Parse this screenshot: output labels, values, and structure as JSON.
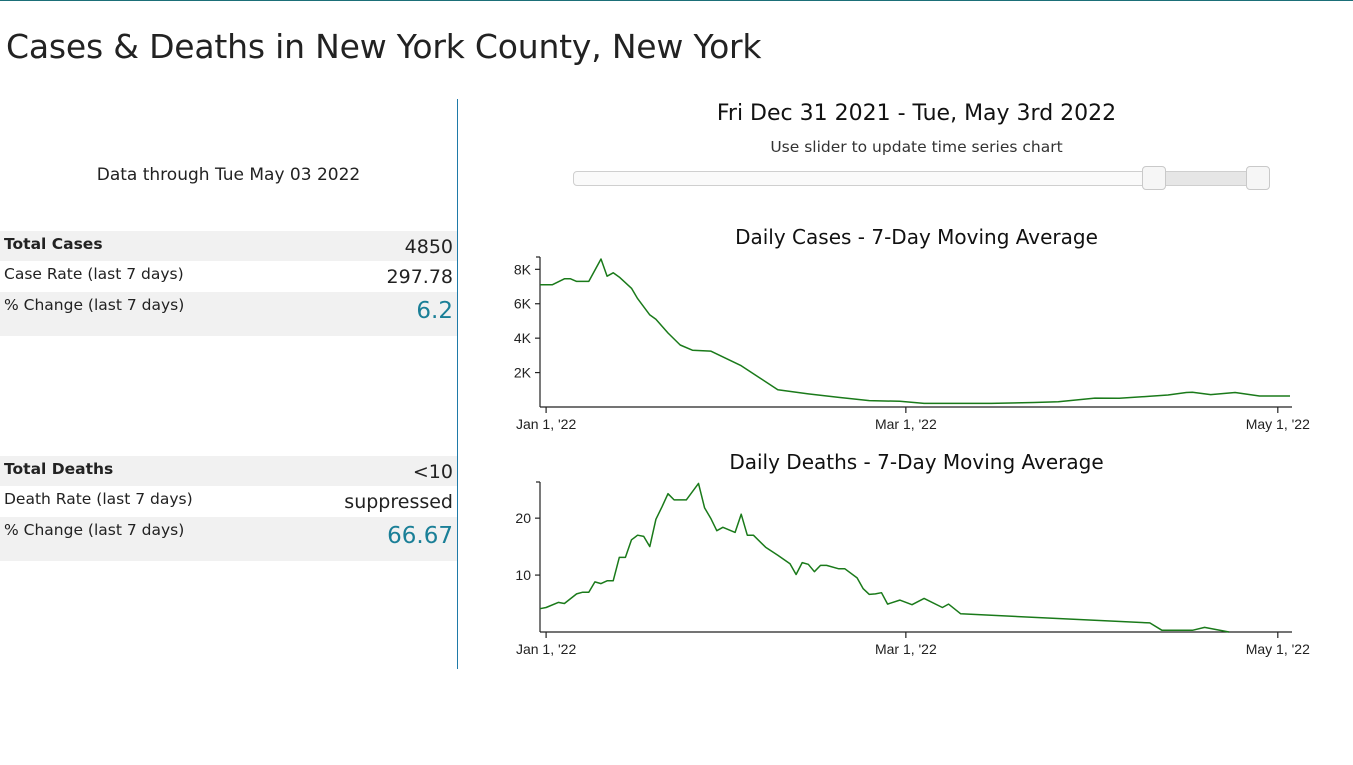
{
  "page": {
    "title": "Cases & Deaths in New York County, New York"
  },
  "summary": {
    "data_through": "Data through Tue May 03 2022"
  },
  "cases_table": [
    {
      "label": "Total Cases",
      "value": "4850"
    },
    {
      "label": "Case Rate (last 7 days)",
      "value": "297.78"
    },
    {
      "label": "% Change (last 7 days)",
      "value": "6.2"
    }
  ],
  "deaths_table": [
    {
      "label": "Total Deaths",
      "value": "<10"
    },
    {
      "label": "Death Rate (last 7 days)",
      "value": "suppressed"
    },
    {
      "label": "% Change (last 7 days)",
      "value": "66.67"
    }
  ],
  "time_range": {
    "title": "Fri Dec 31 2021 - Tue, May 3rd 2022",
    "hint": "Use slider to update time series chart",
    "slider_min": "2020-03-01",
    "slider_max": "2022-05-03",
    "selected_start": "2021-12-31",
    "selected_end": "2022-05-03"
  },
  "colors": {
    "line": "#1a7a1a",
    "accent": "#1a7f97",
    "divider": "#1f7aa8"
  },
  "chart_data": [
    {
      "type": "line",
      "title": "Daily Cases - 7-Day Moving Average",
      "xlabel": "",
      "ylabel": "",
      "x_ticks": [
        {
          "date": "2022-01-01",
          "label": "Jan 1, '22"
        },
        {
          "date": "2022-03-01",
          "label": "Mar 1, '22"
        },
        {
          "date": "2022-05-01",
          "label": "May 1, '22"
        }
      ],
      "xlim": [
        "2021-12-31",
        "2022-05-03"
      ],
      "y_ticks": [
        {
          "value": 2000,
          "label": "2K"
        },
        {
          "value": 4000,
          "label": "4K"
        },
        {
          "value": 6000,
          "label": "6K"
        },
        {
          "value": 8000,
          "label": "8K"
        }
      ],
      "ylim": [
        0,
        8600
      ],
      "grid": false,
      "series": [
        {
          "x": [
            "2021-12-31",
            "2022-01-02",
            "2022-01-04",
            "2022-01-05",
            "2022-01-06",
            "2022-01-08",
            "2022-01-10",
            "2022-01-11",
            "2022-01-12",
            "2022-01-13",
            "2022-01-15",
            "2022-01-16",
            "2022-01-18",
            "2022-01-19",
            "2022-01-21",
            "2022-01-23",
            "2022-01-25",
            "2022-01-28",
            "2022-02-02",
            "2022-02-05",
            "2022-02-08",
            "2022-02-13",
            "2022-02-18",
            "2022-02-23",
            "2022-02-28",
            "2022-03-04",
            "2022-03-08",
            "2022-03-15",
            "2022-03-22",
            "2022-03-26",
            "2022-04-01",
            "2022-04-05",
            "2022-04-10",
            "2022-04-13",
            "2022-04-16",
            "2022-04-17",
            "2022-04-20",
            "2022-04-24",
            "2022-04-28",
            "2022-05-03"
          ],
          "y": [
            7100,
            7100,
            7450,
            7450,
            7300,
            7300,
            8600,
            7600,
            7800,
            7550,
            6900,
            6300,
            5350,
            5100,
            4300,
            3600,
            3300,
            3250,
            2400,
            1700,
            1000,
            760,
            560,
            370,
            330,
            210,
            210,
            210,
            260,
            300,
            520,
            510,
            620,
            700,
            840,
            860,
            720,
            840,
            640,
            640
          ]
        }
      ]
    },
    {
      "type": "line",
      "title": "Daily Deaths - 7-Day Moving Average",
      "xlabel": "",
      "ylabel": "",
      "x_ticks": [
        {
          "date": "2022-01-01",
          "label": "Jan 1, '22"
        },
        {
          "date": "2022-03-01",
          "label": "Mar 1, '22"
        },
        {
          "date": "2022-05-01",
          "label": "May 1, '22"
        }
      ],
      "xlim": [
        "2021-12-31",
        "2022-05-03"
      ],
      "y_ticks": [
        {
          "value": 10,
          "label": "10"
        },
        {
          "value": 20,
          "label": "20"
        }
      ],
      "ylim": [
        0,
        26
      ],
      "grid": false,
      "series": [
        {
          "x": [
            "2021-12-31",
            "2022-01-01",
            "2022-01-03",
            "2022-01-04",
            "2022-01-06",
            "2022-01-07",
            "2022-01-08",
            "2022-01-09",
            "2022-01-10",
            "2022-01-11",
            "2022-01-12",
            "2022-01-13",
            "2022-01-14",
            "2022-01-15",
            "2022-01-16",
            "2022-01-17",
            "2022-01-18",
            "2022-01-19",
            "2022-01-20",
            "2022-01-21",
            "2022-01-22",
            "2022-01-24",
            "2022-01-26",
            "2022-01-27",
            "2022-01-28",
            "2022-01-29",
            "2022-01-30",
            "2022-02-01",
            "2022-02-02",
            "2022-02-03",
            "2022-02-04",
            "2022-02-06",
            "2022-02-08",
            "2022-02-10",
            "2022-02-11",
            "2022-02-12",
            "2022-02-13",
            "2022-02-14",
            "2022-02-15",
            "2022-02-16",
            "2022-02-18",
            "2022-02-19",
            "2022-02-21",
            "2022-02-22",
            "2022-02-23",
            "2022-02-24",
            "2022-02-25",
            "2022-02-26",
            "2022-02-28",
            "2022-03-02",
            "2022-03-04",
            "2022-03-07",
            "2022-03-08",
            "2022-03-10",
            "2022-04-10",
            "2022-04-12",
            "2022-04-14",
            "2022-04-17",
            "2022-04-19",
            "2022-04-23"
          ],
          "y": [
            4.1,
            4.3,
            5.2,
            5.0,
            6.7,
            7.0,
            7.0,
            8.8,
            8.5,
            9.0,
            9.0,
            13.1,
            13.1,
            16.2,
            17.0,
            16.8,
            15.0,
            19.8,
            22.0,
            24.3,
            23.2,
            23.2,
            26.1,
            21.8,
            20.0,
            17.8,
            18.4,
            17.5,
            20.7,
            17.0,
            17.0,
            14.9,
            13.5,
            12.0,
            10.1,
            12.2,
            11.9,
            10.6,
            11.7,
            11.7,
            11.1,
            11.1,
            9.5,
            7.6,
            6.6,
            6.7,
            6.9,
            4.9,
            5.6,
            4.8,
            5.9,
            4.3,
            4.9,
            3.2,
            1.6,
            0.3,
            0.3,
            0.3,
            0.8,
            0.0
          ]
        }
      ]
    }
  ]
}
